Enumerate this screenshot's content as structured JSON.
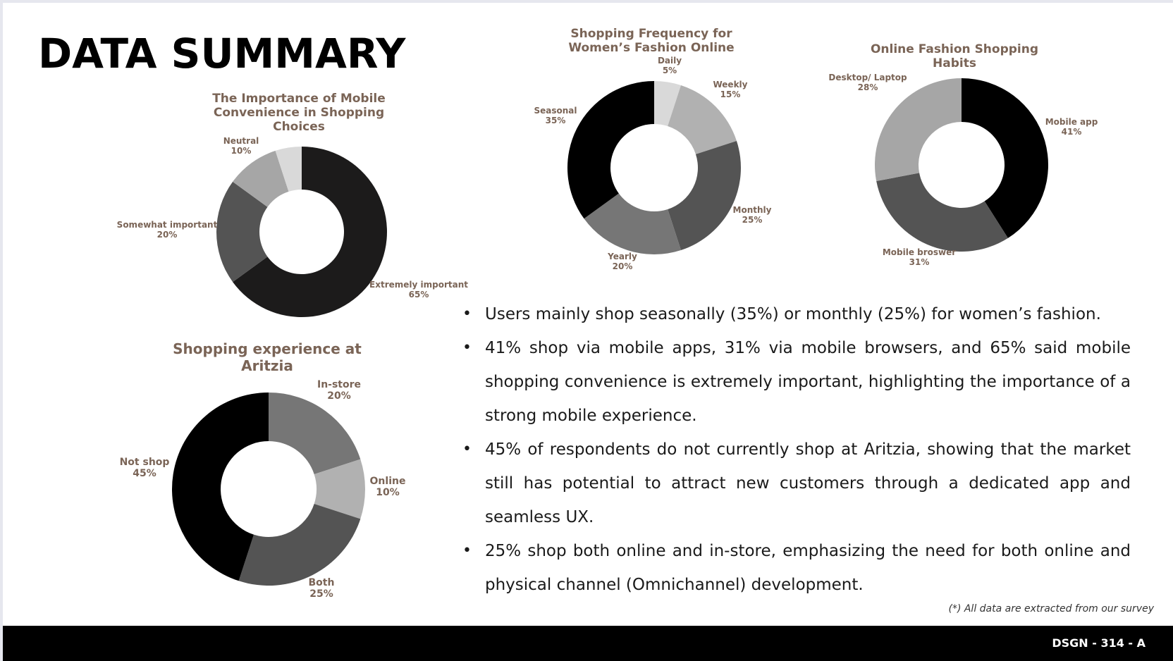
{
  "page": {
    "title": "DATA SUMMARY",
    "footnote": "(*) All data are extracted from our survey",
    "course_code": "DSGN - 314 - A"
  },
  "insights": [
    "Users mainly shop seasonally (35%) or monthly (25%) for women’s fashion.",
    "41% shop via mobile apps, 31% via mobile browsers, and 65% said mobile shopping convenience is extremely important, highlighting the importance of a strong mobile experience.",
    "45% of respondents do not currently shop at Aritzia, showing that the market still has potential to attract new customers through a dedicated app and seamless UX.",
    "25% shop both online and in-store, emphasizing the need for both online and physical channel (Omnichannel) development."
  ],
  "chart_data": [
    {
      "type": "pie",
      "title": "The Importance of Mobile Convenience in Shopping Choices",
      "categories": [
        "Extremely important",
        "Somewhat important",
        "Neutral",
        ""
      ],
      "values": [
        65,
        20,
        10,
        5
      ],
      "labels": [
        "65%",
        "20%",
        "10%",
        ""
      ],
      "colors": [
        "#1c1b1b",
        "#545454",
        "#a6a6a6",
        "#d9d9d9"
      ]
    },
    {
      "type": "pie",
      "title": "Shopping Frequency for Women’s Fashion Online",
      "categories": [
        "Daily",
        "Weekly",
        "Monthly",
        "Yearly",
        "Seasonal"
      ],
      "values": [
        5,
        15,
        25,
        20,
        35
      ],
      "labels": [
        "5%",
        "15%",
        "25%",
        "20%",
        "35%"
      ],
      "colors": [
        "#d9d9d9",
        "#b1b1b1",
        "#545454",
        "#767676",
        "#000000"
      ]
    },
    {
      "type": "pie",
      "title": "Online Fashion Shopping Habits",
      "categories": [
        "Mobile app",
        "Mobile broswer",
        "Desktop/ Laptop"
      ],
      "values": [
        41,
        31,
        28
      ],
      "labels": [
        "41%",
        "31%",
        "28%"
      ],
      "colors": [
        "#000000",
        "#545454",
        "#a6a6a6"
      ]
    },
    {
      "type": "pie",
      "title": "Shopping experience at Aritzia",
      "categories": [
        "In-store",
        "Online",
        "Both",
        "Not shop"
      ],
      "values": [
        20,
        10,
        25,
        45
      ],
      "labels": [
        "20%",
        "10%",
        "25%",
        "45%"
      ],
      "colors": [
        "#767676",
        "#b1b1b1",
        "#545454",
        "#000000"
      ]
    }
  ]
}
